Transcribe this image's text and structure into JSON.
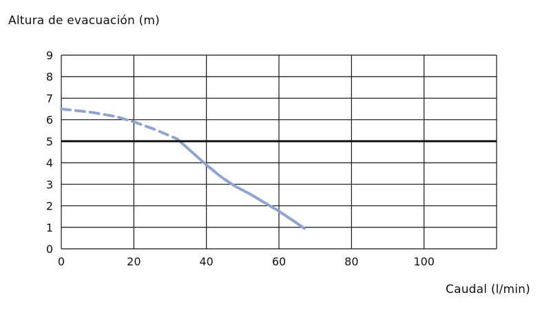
{
  "chart_data": {
    "type": "line",
    "ylabel": "Altura de evacuación (m)",
    "xlabel": "Caudal (l/min)",
    "xlim": [
      0,
      120
    ],
    "ylim": [
      0,
      9
    ],
    "x_ticks": [
      0,
      20,
      40,
      60,
      80,
      100
    ],
    "y_ticks": [
      0,
      1,
      2,
      3,
      4,
      5,
      6,
      7,
      8,
      9
    ],
    "grid": true,
    "reference_line": {
      "y": 5
    },
    "series": [
      {
        "style": "dashed",
        "color": "#8fa3cc",
        "x": [
          0,
          8,
          15,
          20,
          25,
          30,
          32
        ],
        "y": [
          6.5,
          6.35,
          6.15,
          5.9,
          5.6,
          5.25,
          5.1
        ]
      },
      {
        "style": "solid",
        "color": "#8fa3cc",
        "x": [
          32,
          36,
          40,
          44,
          48,
          52,
          56,
          60,
          64,
          67
        ],
        "y": [
          5.1,
          4.5,
          3.9,
          3.35,
          2.9,
          2.55,
          2.15,
          1.75,
          1.3,
          0.95
        ]
      }
    ]
  }
}
